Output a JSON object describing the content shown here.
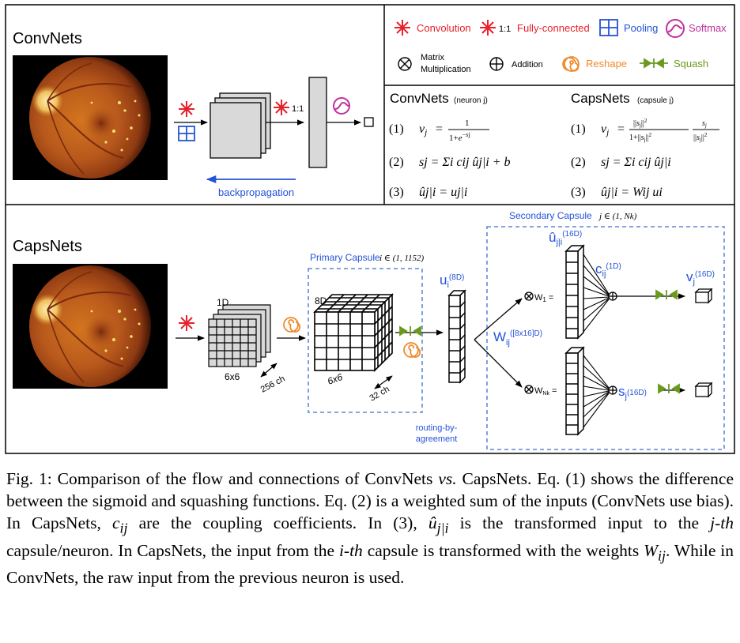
{
  "convnets": {
    "title": "ConvNets",
    "matrix_dims": "1:1",
    "backprop_label": "backpropagation"
  },
  "legend": {
    "convolution": "Convolution",
    "fc_prefix": "1:1",
    "fully_connected": "Fully-connected",
    "pooling": "Pooling",
    "softmax": "Softmax",
    "matrix_mult_line1": "Matrix",
    "matrix_mult_line2": "Multiplication",
    "addition": "Addition",
    "reshape": "Reshape",
    "squash": "Squash"
  },
  "equations": {
    "conv_title": "ConvNets",
    "conv_sub": "(neuron j)",
    "caps_title": "CapsNets",
    "caps_sub": "(capsule j)",
    "n1": "(1)",
    "n2": "(2)",
    "n3": "(3)",
    "conv_eq2": "sj = Σi cij ûj|i + b",
    "conv_eq3": "ûj|i = uj|i",
    "caps_eq2": "sj = Σi cij ûj|i",
    "caps_eq3": "ûj|i = Wij ui"
  },
  "capsnets": {
    "title": "CapsNets",
    "layer1_depth": "1D",
    "layer1_size": "6x6",
    "layer1_channels": "256 ch",
    "primary_title": "Primary Capsule",
    "primary_range": "i ∈ (1, 1152)",
    "primary_depth": "8D",
    "primary_size": "6x6",
    "primary_channels": "32 ch",
    "u_label": "u",
    "u_sub": "i",
    "u_dim": "(8D)",
    "routing_line1": "routing-by-",
    "routing_line2": "agreement",
    "secondary_title": "Secondary Capsule",
    "secondary_range": "j ∈ (1, Nk)",
    "uhat_label": "û",
    "uhat_sub": "j|i",
    "uhat_dim": "(16D)",
    "w_label": "W",
    "w_sub": "ij",
    "w_dim": "([8x16]D)",
    "w1": "W",
    "w1_sub": "1",
    "wn": "W",
    "wn_sub": "Nk",
    "c_label": "c",
    "c_sub": "ij",
    "c_dim": "(1D)",
    "v_label": "v",
    "v_sub": "j",
    "v_dim": "(16D)",
    "s_label": "s",
    "s_sub": "j",
    "s_dim": "(16D)"
  },
  "caption": {
    "text1": "Fig. 1: Comparison of the flow and connections of ConvNets ",
    "vs": "vs.",
    "text2": " CapsNets. Eq. (1) shows the difference between the sigmoid and squashing functions. Eq. (2) is a weighted sum of the inputs (ConvNets use bias). In CapsNets, ",
    "cij": "c",
    "cij_sub": "ij",
    "text3": " are the coupling coefficients. In (3), ",
    "uhat": "û",
    "uhat_sub": "j|i",
    "text4": " is the transformed input to the ",
    "jth": "j-th",
    "text5": " capsule/neuron. In CapsNets, the input from the ",
    "ith": "i-th",
    "text6": " capsule is transformed with the weights ",
    "w": "W",
    "w_sub": "ij",
    "text7": ". While in ConvNets, the raw input from the previous neuron is used."
  },
  "colors": {
    "red": "#e8202a",
    "blue": "#2453d6",
    "magenta": "#c0309a",
    "orange": "#ee8a2a",
    "green": "#6a9a1c",
    "dashed_blue": "#3a6fd0"
  }
}
